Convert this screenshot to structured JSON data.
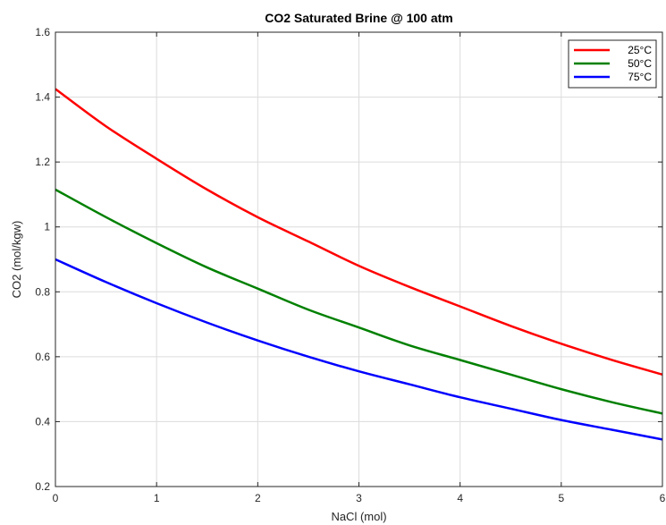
{
  "chart_data": {
    "type": "line",
    "title": "CO2 Saturated Brine @ 100 atm",
    "xlabel": "NaCl (mol)",
    "ylabel": "CO2 (mol/kgw)",
    "xlim": [
      0,
      6
    ],
    "ylim": [
      0.2,
      1.6
    ],
    "xticks": [
      "0",
      "1",
      "2",
      "3",
      "4",
      "5",
      "6"
    ],
    "yticks": [
      "0.2",
      "0.4",
      "0.6",
      "0.8",
      "1",
      "1.2",
      "1.4",
      "1.6"
    ],
    "grid": true,
    "legend_position": "top-right",
    "x": [
      0,
      0.5,
      1,
      1.5,
      2,
      2.5,
      3,
      3.5,
      4,
      4.5,
      5,
      5.5,
      6
    ],
    "series": [
      {
        "name": "25°C",
        "color": "#ff0000",
        "values": [
          1.425,
          1.31,
          1.21,
          1.115,
          1.03,
          0.955,
          0.88,
          0.815,
          0.755,
          0.695,
          0.64,
          0.59,
          0.545
        ]
      },
      {
        "name": "50°C",
        "color": "#008000",
        "values": [
          1.115,
          1.03,
          0.95,
          0.875,
          0.81,
          0.745,
          0.69,
          0.635,
          0.59,
          0.545,
          0.5,
          0.46,
          0.425
        ]
      },
      {
        "name": "75°C",
        "color": "#0000ff",
        "values": [
          0.9,
          0.83,
          0.765,
          0.705,
          0.65,
          0.6,
          0.555,
          0.515,
          0.475,
          0.44,
          0.405,
          0.375,
          0.345
        ]
      }
    ]
  }
}
